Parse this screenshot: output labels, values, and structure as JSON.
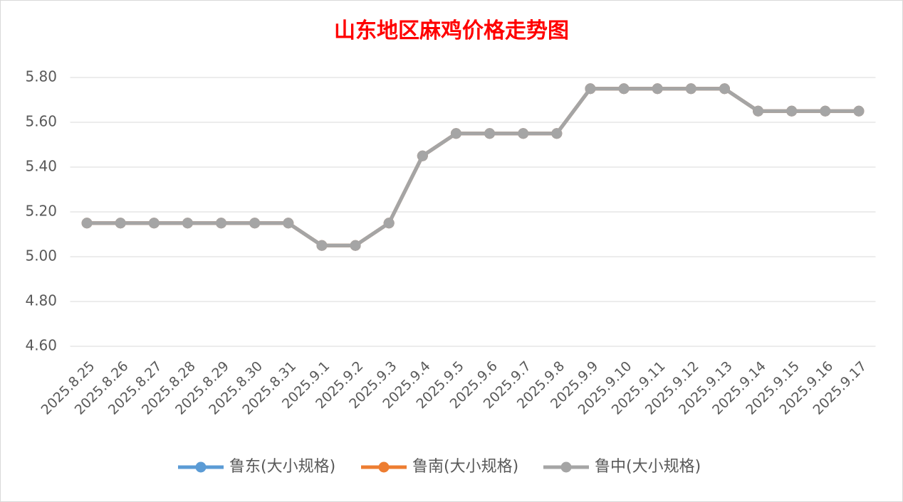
{
  "chart_data": {
    "type": "line",
    "title": "山东地区麻鸡价格走势图",
    "categories": [
      "2025.8.25",
      "2025.8.26",
      "2025.8.27",
      "2025.8.28",
      "2025.8.29",
      "2025.8.30",
      "2025.8.31",
      "2025.9.1",
      "2025.9.2",
      "2025.9.3",
      "2025.9.4",
      "2025.9.5",
      "2025.9.6",
      "2025.9.7",
      "2025.9.8",
      "2025.9.9",
      "2025.9.10",
      "2025.9.11",
      "2025.9.12",
      "2025.9.13",
      "2025.9.14",
      "2025.9.15",
      "2025.9.16",
      "2025.9.17"
    ],
    "series": [
      {
        "name": "鲁东(大小规格)",
        "color": "#5b9bd5",
        "values": [
          5.15,
          5.15,
          5.15,
          5.15,
          5.15,
          5.15,
          5.15,
          5.05,
          5.05,
          5.15,
          5.45,
          5.55,
          5.55,
          5.55,
          5.55,
          5.75,
          5.75,
          5.75,
          5.75,
          5.75,
          5.65,
          5.65,
          5.65,
          5.65
        ]
      },
      {
        "name": "鲁南(大小规格)",
        "color": "#ed7d31",
        "values": [
          5.15,
          5.15,
          5.15,
          5.15,
          5.15,
          5.15,
          5.15,
          5.05,
          5.05,
          5.15,
          5.45,
          5.55,
          5.55,
          5.55,
          5.55,
          5.75,
          5.75,
          5.75,
          5.75,
          5.75,
          5.65,
          5.65,
          5.65,
          5.65
        ]
      },
      {
        "name": "鲁中(大小规格)",
        "color": "#a5a5a5",
        "values": [
          5.15,
          5.15,
          5.15,
          5.15,
          5.15,
          5.15,
          5.15,
          5.05,
          5.05,
          5.15,
          5.45,
          5.55,
          5.55,
          5.55,
          5.55,
          5.75,
          5.75,
          5.75,
          5.75,
          5.75,
          5.65,
          5.65,
          5.65,
          5.65
        ]
      }
    ],
    "ylim": [
      4.6,
      5.8
    ],
    "yticks": [
      {
        "value": 4.6,
        "label": "4.60"
      },
      {
        "value": 4.8,
        "label": "4.80"
      },
      {
        "value": 5.0,
        "label": "5.00"
      },
      {
        "value": 5.2,
        "label": "5.20"
      },
      {
        "value": 5.4,
        "label": "5.40"
      },
      {
        "value": 5.6,
        "label": "5.60"
      },
      {
        "value": 5.8,
        "label": "5.80"
      }
    ],
    "grid": true,
    "legend": "bottom"
  }
}
